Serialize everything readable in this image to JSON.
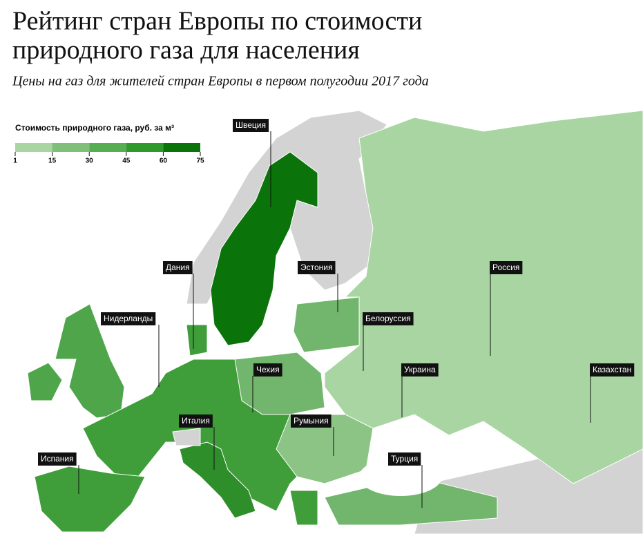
{
  "header": {
    "title": [
      "Рейтинг стран Европы по стоимости",
      "природного газа для населения"
    ],
    "subtitle": "Цены на газ для жителей стран Европы в первом полугодии 2017 года"
  },
  "legend": {
    "title": "Стоимость природного газа, руб. за м³",
    "ticks": [
      1,
      15,
      30,
      45,
      60,
      75
    ],
    "colors": [
      "#a8d5a2",
      "#7fbf79",
      "#57ad52",
      "#2e9a2e",
      "#0a730a"
    ]
  },
  "labels": [
    "Швеция",
    "Дания",
    "Эстония",
    "Россия",
    "Нидерланды",
    "Белоруссия",
    "Чехия",
    "Украина",
    "Казахстан",
    "Италия",
    "Румыния",
    "Испания",
    "Турция"
  ]
}
